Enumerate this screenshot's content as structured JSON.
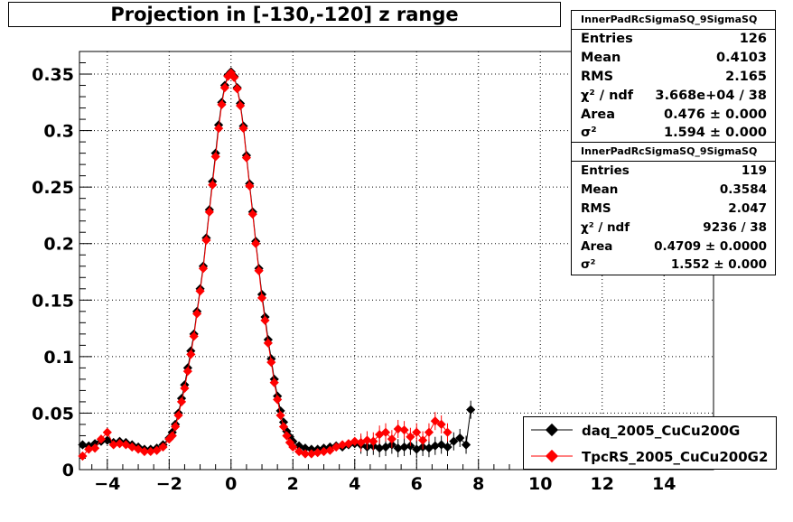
{
  "title": "Projection in [-130,-120] z range",
  "stats": [
    {
      "header": "InnerPadRcSigmaSQ_9SigmaSQ",
      "rows": [
        {
          "label": "Entries",
          "value": "126"
        },
        {
          "label": "Mean",
          "value": "0.4103"
        },
        {
          "label": "RMS",
          "value": "2.165"
        },
        {
          "label": "χ² / ndf",
          "value": "3.668e+04 / 38"
        },
        {
          "label": "Area",
          "value": "0.476 ± 0.000"
        },
        {
          "label": "σ²",
          "value": "1.594 ± 0.000"
        }
      ]
    },
    {
      "header": "InnerPadRcSigmaSQ_9SigmaSQ",
      "rows": [
        {
          "label": "Entries",
          "value": "119"
        },
        {
          "label": "Mean",
          "value": "0.3584"
        },
        {
          "label": "RMS",
          "value": "2.047"
        },
        {
          "label": "χ² / ndf",
          "value": "9236 / 38"
        },
        {
          "label": "Area",
          "value": "0.4709 ± 0.0000"
        },
        {
          "label": "σ²",
          "value": "1.552 ± 0.000"
        }
      ]
    }
  ],
  "legend": [
    {
      "label": "daq_2005_CuCu200G",
      "color": "#000000"
    },
    {
      "label": "TpcRS_2005_CuCu200G2",
      "color": "#ff0000"
    }
  ],
  "chart_data": {
    "type": "scatter",
    "title": "Projection in [-130,-120] z range",
    "xlim": [
      -4.9,
      15.6
    ],
    "ylim": [
      0,
      0.37
    ],
    "grid": true,
    "legend_position": "bottom-right",
    "x_ticks": [
      "−4",
      "−2",
      "0",
      "2",
      "4",
      "6",
      "8",
      "10",
      "12",
      "14"
    ],
    "x_tick_values": [
      -4,
      -2,
      0,
      2,
      4,
      6,
      8,
      10,
      12,
      14
    ],
    "y_ticks": [
      "0",
      "0.05",
      "0.1",
      "0.15",
      "0.2",
      "0.25",
      "0.3",
      "0.35"
    ],
    "y_tick_values": [
      0,
      0.05,
      0.1,
      0.15,
      0.2,
      0.25,
      0.3,
      0.35
    ],
    "series": [
      {
        "name": "daq_2005_CuCu200G",
        "color": "#000000",
        "points": [
          [
            -4.8,
            0.022
          ],
          [
            -4.6,
            0.021
          ],
          [
            -4.4,
            0.023
          ],
          [
            -4.2,
            0.025
          ],
          [
            -4.0,
            0.026
          ],
          [
            -3.8,
            0.024
          ],
          [
            -3.6,
            0.025
          ],
          [
            -3.4,
            0.024
          ],
          [
            -3.2,
            0.022
          ],
          [
            -3.0,
            0.02
          ],
          [
            -2.8,
            0.018
          ],
          [
            -2.6,
            0.018
          ],
          [
            -2.4,
            0.019
          ],
          [
            -2.2,
            0.022
          ],
          [
            -2.0,
            0.028
          ],
          [
            -1.9,
            0.033
          ],
          [
            -1.8,
            0.04
          ],
          [
            -1.7,
            0.05
          ],
          [
            -1.6,
            0.063
          ],
          [
            -1.5,
            0.075
          ],
          [
            -1.4,
            0.09
          ],
          [
            -1.3,
            0.105
          ],
          [
            -1.2,
            0.12
          ],
          [
            -1.1,
            0.14
          ],
          [
            -1.0,
            0.16
          ],
          [
            -0.9,
            0.18
          ],
          [
            -0.8,
            0.205
          ],
          [
            -0.7,
            0.23
          ],
          [
            -0.6,
            0.255
          ],
          [
            -0.5,
            0.28
          ],
          [
            -0.4,
            0.305
          ],
          [
            -0.3,
            0.325
          ],
          [
            -0.2,
            0.34
          ],
          [
            -0.1,
            0.349
          ],
          [
            0.0,
            0.352
          ],
          [
            0.1,
            0.348
          ],
          [
            0.2,
            0.338
          ],
          [
            0.3,
            0.324
          ],
          [
            0.4,
            0.304
          ],
          [
            0.5,
            0.278
          ],
          [
            0.6,
            0.253
          ],
          [
            0.7,
            0.228
          ],
          [
            0.8,
            0.202
          ],
          [
            0.9,
            0.178
          ],
          [
            1.0,
            0.155
          ],
          [
            1.1,
            0.135
          ],
          [
            1.2,
            0.115
          ],
          [
            1.3,
            0.098
          ],
          [
            1.4,
            0.08
          ],
          [
            1.5,
            0.065
          ],
          [
            1.6,
            0.052
          ],
          [
            1.7,
            0.042
          ],
          [
            1.8,
            0.034
          ],
          [
            1.9,
            0.029
          ],
          [
            2.0,
            0.025
          ],
          [
            2.2,
            0.021
          ],
          [
            2.4,
            0.019
          ],
          [
            2.6,
            0.018
          ],
          [
            2.8,
            0.018
          ],
          [
            3.0,
            0.019
          ],
          [
            3.2,
            0.02
          ],
          [
            3.4,
            0.021
          ],
          [
            3.6,
            0.02
          ],
          [
            3.8,
            0.022
          ],
          [
            4.0,
            0.023
          ],
          [
            4.2,
            0.022
          ],
          [
            4.4,
            0.02
          ],
          [
            4.6,
            0.021
          ],
          [
            4.8,
            0.019
          ],
          [
            5.0,
            0.02
          ],
          [
            5.2,
            0.022
          ],
          [
            5.4,
            0.019
          ],
          [
            5.6,
            0.02
          ],
          [
            5.8,
            0.021
          ],
          [
            6.0,
            0.018
          ],
          [
            6.2,
            0.02
          ],
          [
            6.4,
            0.019
          ],
          [
            6.6,
            0.021
          ],
          [
            6.8,
            0.022
          ],
          [
            7.0,
            0.02
          ],
          [
            7.2,
            0.025
          ],
          [
            7.4,
            0.028
          ],
          [
            7.6,
            0.022
          ],
          [
            7.75,
            0.053
          ]
        ]
      },
      {
        "name": "TpcRS_2005_CuCu200G2",
        "color": "#ff0000",
        "points": [
          [
            -4.8,
            0.012
          ],
          [
            -4.6,
            0.018
          ],
          [
            -4.4,
            0.019
          ],
          [
            -4.2,
            0.027
          ],
          [
            -4.0,
            0.033
          ],
          [
            -3.8,
            0.022
          ],
          [
            -3.6,
            0.023
          ],
          [
            -3.4,
            0.022
          ],
          [
            -3.2,
            0.02
          ],
          [
            -3.0,
            0.018
          ],
          [
            -2.8,
            0.016
          ],
          [
            -2.6,
            0.016
          ],
          [
            -2.4,
            0.017
          ],
          [
            -2.2,
            0.02
          ],
          [
            -2.0,
            0.027
          ],
          [
            -1.9,
            0.03
          ],
          [
            -1.8,
            0.038
          ],
          [
            -1.7,
            0.048
          ],
          [
            -1.6,
            0.06
          ],
          [
            -1.5,
            0.072
          ],
          [
            -1.4,
            0.087
          ],
          [
            -1.3,
            0.102
          ],
          [
            -1.2,
            0.118
          ],
          [
            -1.1,
            0.138
          ],
          [
            -1.0,
            0.158
          ],
          [
            -0.9,
            0.178
          ],
          [
            -0.8,
            0.203
          ],
          [
            -0.7,
            0.228
          ],
          [
            -0.6,
            0.252
          ],
          [
            -0.5,
            0.277
          ],
          [
            -0.4,
            0.302
          ],
          [
            -0.3,
            0.323
          ],
          [
            -0.2,
            0.338
          ],
          [
            -0.1,
            0.348
          ],
          [
            0.0,
            0.351
          ],
          [
            0.1,
            0.347
          ],
          [
            0.2,
            0.337
          ],
          [
            0.3,
            0.322
          ],
          [
            0.4,
            0.302
          ],
          [
            0.5,
            0.276
          ],
          [
            0.6,
            0.251
          ],
          [
            0.7,
            0.226
          ],
          [
            0.8,
            0.2
          ],
          [
            0.9,
            0.176
          ],
          [
            1.0,
            0.152
          ],
          [
            1.1,
            0.132
          ],
          [
            1.2,
            0.112
          ],
          [
            1.3,
            0.095
          ],
          [
            1.4,
            0.077
          ],
          [
            1.5,
            0.062
          ],
          [
            1.6,
            0.048
          ],
          [
            1.7,
            0.038
          ],
          [
            1.8,
            0.03
          ],
          [
            1.9,
            0.024
          ],
          [
            2.0,
            0.02
          ],
          [
            2.2,
            0.016
          ],
          [
            2.4,
            0.014
          ],
          [
            2.6,
            0.014
          ],
          [
            2.8,
            0.015
          ],
          [
            3.0,
            0.016
          ],
          [
            3.2,
            0.017
          ],
          [
            3.4,
            0.02
          ],
          [
            3.6,
            0.022
          ],
          [
            3.8,
            0.023
          ],
          [
            4.0,
            0.025
          ],
          [
            4.2,
            0.024
          ],
          [
            4.4,
            0.026
          ],
          [
            4.6,
            0.025
          ],
          [
            4.8,
            0.031
          ],
          [
            5.0,
            0.033
          ],
          [
            5.2,
            0.027
          ],
          [
            5.4,
            0.036
          ],
          [
            5.6,
            0.035
          ],
          [
            5.8,
            0.029
          ],
          [
            6.0,
            0.033
          ],
          [
            6.2,
            0.026
          ],
          [
            6.4,
            0.033
          ],
          [
            6.6,
            0.043
          ],
          [
            6.8,
            0.04
          ],
          [
            7.0,
            0.033
          ]
        ]
      }
    ]
  }
}
